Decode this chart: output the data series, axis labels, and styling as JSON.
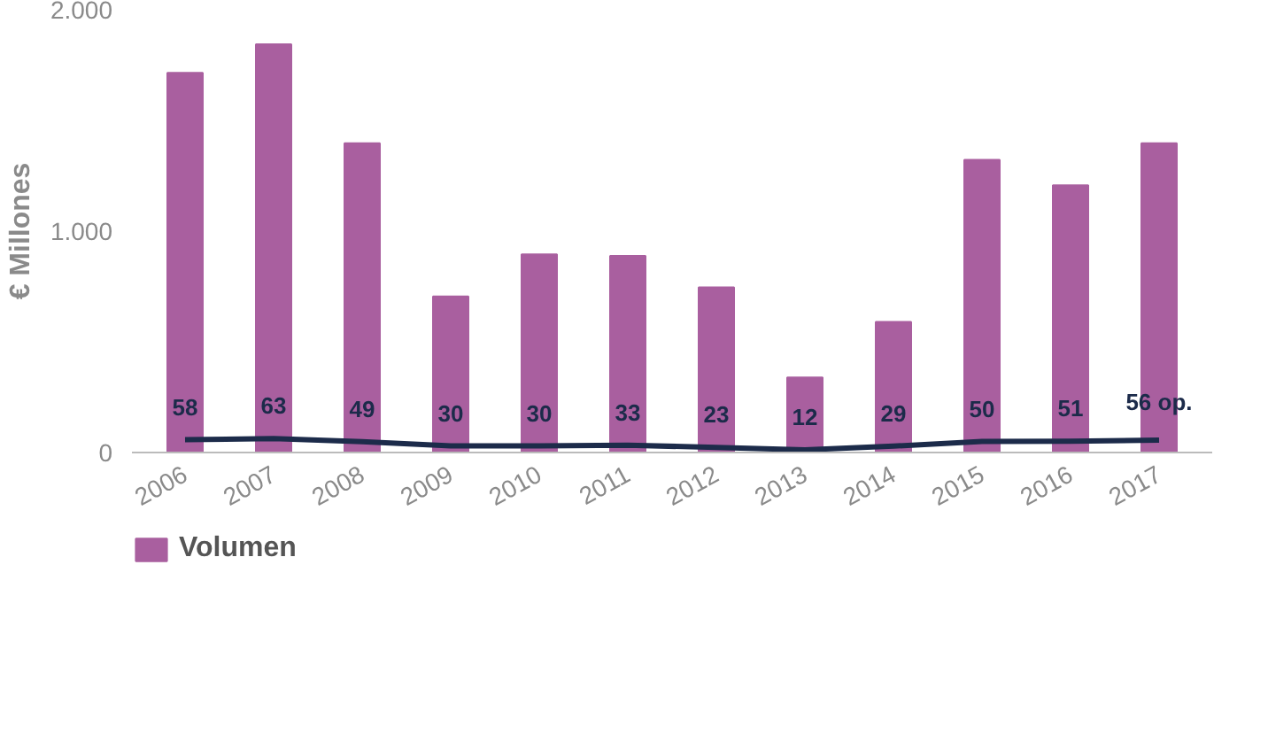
{
  "chart_data": {
    "type": "bar",
    "ylabel": "€ Millones",
    "categories": [
      "2006",
      "2007",
      "2008",
      "2009",
      "2010",
      "2011",
      "2012",
      "2013",
      "2014",
      "2015",
      "2016",
      "2017"
    ],
    "series": [
      {
        "name": "Volumen",
        "color": "#a95f9f",
        "values": [
          1715,
          1844,
          1397,
          705,
          895,
          888,
          746,
          339,
          590,
          1322,
          1207,
          1397
        ]
      },
      {
        "type": "line",
        "color": "#1c2b4a",
        "values": [
          58,
          63,
          49,
          30,
          30,
          33,
          23,
          12,
          29,
          50,
          51,
          56
        ],
        "value_labels": [
          "58",
          "63",
          "49",
          "30",
          "30",
          "33",
          "23",
          "12",
          "29",
          "50",
          "51",
          "56 op."
        ]
      }
    ],
    "ylim": [
      0,
      2000
    ],
    "yticks": [
      0,
      {
        "value": 1000,
        "label": "1.000"
      },
      {
        "value": 2000,
        "label": "2.000"
      }
    ],
    "grid": false,
    "legend": "bottom"
  }
}
